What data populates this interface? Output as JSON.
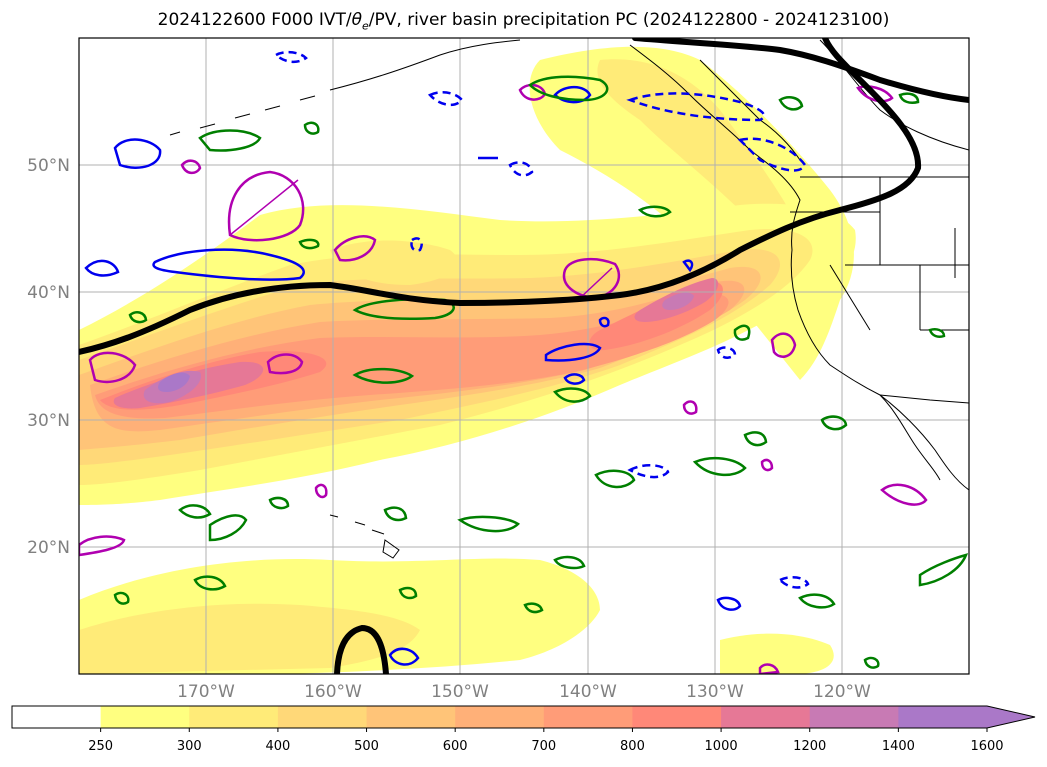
{
  "title": {
    "prefix": "2024122600 F000 IVT/",
    "theta": "θ",
    "theta_sub": "e",
    "suffix": "/PV, river basin precipitation PC (2024122800 - 2024123100)"
  },
  "map": {
    "projection": "lat-lon",
    "lon_range": [
      -180,
      -110
    ],
    "lat_range": [
      10,
      60
    ],
    "lat_ticks": [
      {
        "value": 50,
        "label": "50°N"
      },
      {
        "value": 40,
        "label": "40°N"
      },
      {
        "value": 30,
        "label": "30°N"
      },
      {
        "value": 20,
        "label": "20°N"
      }
    ],
    "lon_ticks": [
      {
        "value": -170,
        "label": "170°W"
      },
      {
        "value": -160,
        "label": "160°W"
      },
      {
        "value": -150,
        "label": "150°W"
      },
      {
        "value": -140,
        "label": "140°W"
      },
      {
        "value": -130,
        "label": "130°W"
      },
      {
        "value": -120,
        "label": "120°W"
      }
    ],
    "grid": true,
    "contour_colors": {
      "theta_e": "#007f00",
      "pv": "#0000ee",
      "precip_pc": "#b000b0",
      "jet": "#000000"
    }
  },
  "colorbar": {
    "levels": [
      "250",
      "300",
      "400",
      "500",
      "600",
      "700",
      "800",
      "1000",
      "1200",
      "1400",
      "1600"
    ],
    "colors": [
      "#ffffff",
      "#ffff80",
      "#ffeb78",
      "#ffd878",
      "#ffc478",
      "#ffb078",
      "#ff9c78",
      "#ff8878",
      "#e67896",
      "#c87ab4",
      "#aa78c8"
    ],
    "extend": "max"
  }
}
